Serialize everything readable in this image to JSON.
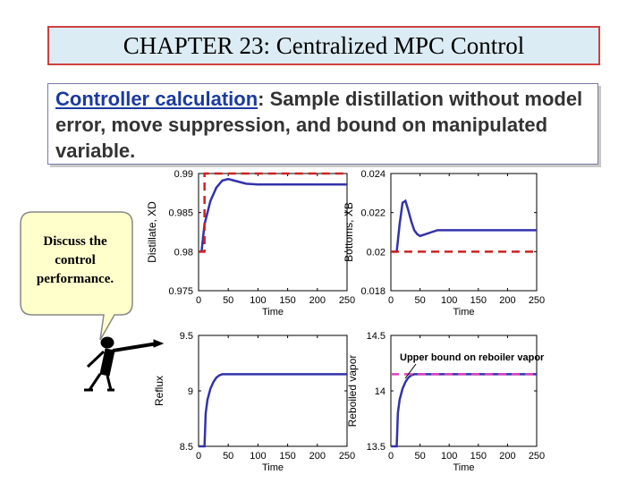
{
  "title": "CHAPTER 23: Centralized MPC Control",
  "subtitle": {
    "lead": "Controller calculation",
    "rest": ":  Sample distillation without model error, move suppression, and bound on manipulated variable."
  },
  "callout": {
    "line1": "Discuss the",
    "line2": "control",
    "line3": "performance."
  },
  "colors": {
    "title_bg": "#dcecf4",
    "title_border": "#d04040",
    "series_line": "#3333aa",
    "setpoint_line": "#cc2222",
    "bound_line": "#dd44bb"
  },
  "chart_data": [
    {
      "type": "line",
      "xlabel": "Time",
      "ylabel": "Distillate, XD",
      "xlim": [
        0,
        250
      ],
      "ylim": [
        0.975,
        0.99
      ],
      "xticks": [
        "0",
        "50",
        "100",
        "150",
        "200",
        "250"
      ],
      "yticks": [
        "0.99",
        "0.985",
        "0.98",
        "0.975"
      ],
      "series": [
        {
          "role": "response",
          "x": [
            0,
            5,
            10,
            20,
            30,
            40,
            50,
            60,
            70,
            80,
            100,
            150,
            200,
            250
          ],
          "y": [
            0.98,
            0.98,
            0.9835,
            0.9865,
            0.9882,
            0.9891,
            0.9893,
            0.9891,
            0.9889,
            0.9887,
            0.9886,
            0.9886,
            0.9886,
            0.9886
          ]
        },
        {
          "role": "setpoint",
          "x": [
            0,
            10,
            10,
            250
          ],
          "y": [
            0.98,
            0.98,
            0.99,
            0.99
          ]
        }
      ]
    },
    {
      "type": "line",
      "xlabel": "Time",
      "ylabel": "Bottoms, XB",
      "xlim": [
        0,
        250
      ],
      "ylim": [
        0.018,
        0.024
      ],
      "xticks": [
        "0",
        "50",
        "100",
        "150",
        "200",
        "250"
      ],
      "yticks": [
        "0.024",
        "0.022",
        "0.02",
        "0.018"
      ],
      "series": [
        {
          "role": "response",
          "x": [
            0,
            10,
            15,
            20,
            25,
            30,
            35,
            40,
            45,
            50,
            60,
            70,
            80,
            90,
            100,
            150,
            200,
            250
          ],
          "y": [
            0.02,
            0.02,
            0.0214,
            0.0225,
            0.0226,
            0.0221,
            0.02155,
            0.0211,
            0.0209,
            0.0208,
            0.0209,
            0.021,
            0.0211,
            0.0211,
            0.0211,
            0.0211,
            0.0211,
            0.0211
          ]
        },
        {
          "role": "setpoint",
          "x": [
            0,
            250
          ],
          "y": [
            0.02,
            0.02
          ]
        }
      ]
    },
    {
      "type": "line",
      "xlabel": "Time",
      "ylabel": "Reflux",
      "xlim": [
        0,
        250
      ],
      "ylim": [
        8.5,
        9.5
      ],
      "xticks": [
        "0",
        "50",
        "100",
        "150",
        "200",
        "250"
      ],
      "yticks": [
        "9.5",
        "9",
        "8.5"
      ],
      "series": [
        {
          "role": "response",
          "x": [
            0,
            10,
            12,
            15,
            20,
            25,
            30,
            35,
            40,
            50,
            60,
            100,
            150,
            200,
            250
          ],
          "y": [
            8.5,
            8.5,
            8.8,
            8.92,
            9.02,
            9.08,
            9.12,
            9.14,
            9.15,
            9.15,
            9.15,
            9.15,
            9.15,
            9.15,
            9.15
          ]
        }
      ]
    },
    {
      "type": "line",
      "xlabel": "Time",
      "ylabel": "Reboiled vapor",
      "xlim": [
        0,
        250
      ],
      "ylim": [
        13.5,
        14.5
      ],
      "xticks": [
        "0",
        "50",
        "100",
        "150",
        "200",
        "250"
      ],
      "yticks": [
        "14.5",
        "14",
        "13.5"
      ],
      "annotation": "Upper bound on reboiler vapor",
      "series": [
        {
          "role": "response",
          "x": [
            0,
            10,
            12,
            15,
            20,
            25,
            30,
            35,
            40,
            50,
            60,
            100,
            150,
            200,
            250
          ],
          "y": [
            13.5,
            13.5,
            13.8,
            13.92,
            14.02,
            14.08,
            14.12,
            14.14,
            14.15,
            14.15,
            14.15,
            14.15,
            14.15,
            14.15,
            14.15
          ]
        },
        {
          "role": "bound",
          "x": [
            0,
            250
          ],
          "y": [
            14.15,
            14.15
          ]
        }
      ]
    }
  ]
}
